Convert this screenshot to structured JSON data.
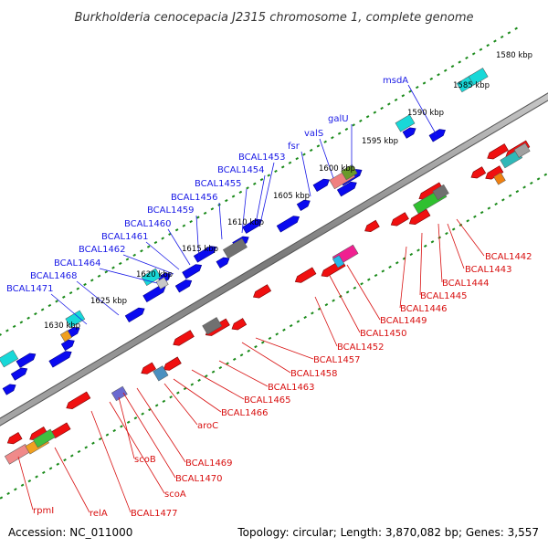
{
  "title": "Burkholderia cenocepacia J2315 chromosome 1, complete genome",
  "footer": {
    "accession": "Accession: NC_011000",
    "info": "Topology: circular; Length: 3,870,082 bp; Genes: 3,557"
  },
  "kbp_labels": [
    "1580 kbp",
    "1585 kbp",
    "1590 kbp",
    "1595 kbp",
    "1600 kbp",
    "1605 kbp",
    "1610 kbp",
    "1615 kbp",
    "1620 kbp",
    "1625 kbp",
    "1630 kbp"
  ],
  "top_labels": [
    "msdA",
    "galU",
    "valS",
    "fsr",
    "BCAL1453",
    "BCAL1454",
    "BCAL1455",
    "BCAL1456",
    "BCAL1459",
    "BCAL1460",
    "BCAL1461",
    "BCAL1462",
    "BCAL1464",
    "BCAL1468",
    "BCAL1471"
  ],
  "bottom_labels": [
    "BCAL1442",
    "BCAL1443",
    "BCAL1444",
    "BCAL1445",
    "BCAL1446",
    "BCAL1449",
    "BCAL1450",
    "BCAL1452",
    "BCAL1457",
    "BCAL1458",
    "BCAL1463",
    "BCAL1465",
    "BCAL1466",
    "aroC",
    "BCAL1469",
    "BCAL1470",
    "scoB",
    "scoA",
    "BCAL1477",
    "relA",
    "rpmI"
  ],
  "colors": {
    "forward_gene": "#0a0af0",
    "reverse_gene": "#f01010",
    "trna": "#18d8d8",
    "backbone": "#808080",
    "tick": "#1a8a1a"
  }
}
